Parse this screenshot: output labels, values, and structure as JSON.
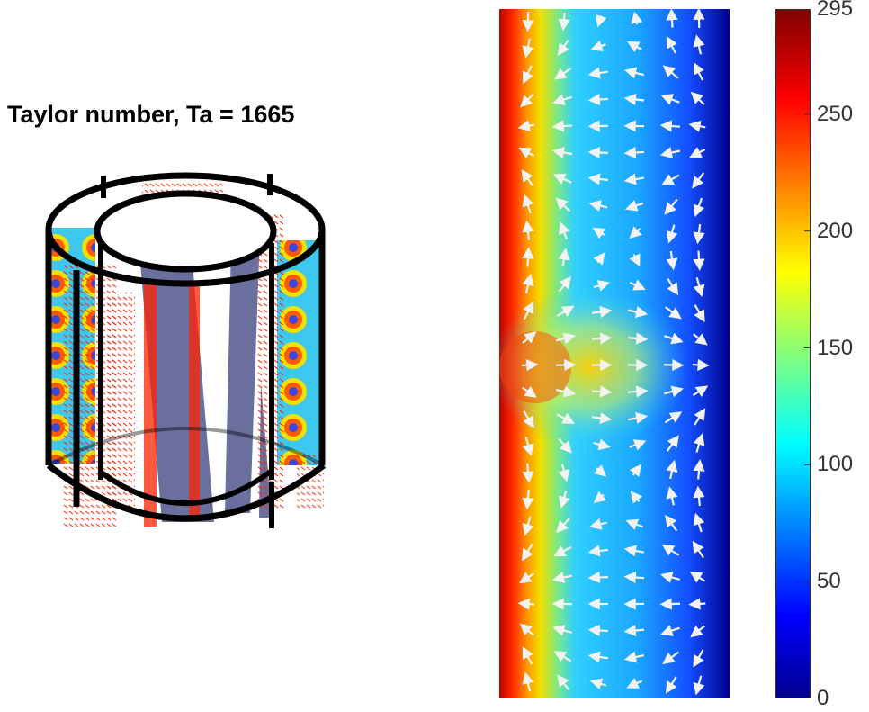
{
  "figure": {
    "title": "Taylor number, Ta = 1665"
  },
  "chart_data": [
    {
      "type": "3d-surface",
      "title": "Taylor number, Ta = 1665",
      "description_shown": "annular cylinder with colored velocity slices and red arrow glyphs"
    },
    {
      "type": "heatmap",
      "title": "",
      "xlabel": "",
      "ylabel": "",
      "colormap": "jet",
      "overlay": "velocity vectors (white arrows)",
      "colorbar": {
        "min": 0,
        "max": 295,
        "ticks": [
          0,
          50,
          100,
          150,
          200,
          250,
          295
        ]
      }
    }
  ],
  "colors": {
    "arrow_left": "#ff2200",
    "arrow_right": "#f2f2f2",
    "cylinder_outline": "#000000",
    "inner_surface": "#6a6f9e"
  }
}
